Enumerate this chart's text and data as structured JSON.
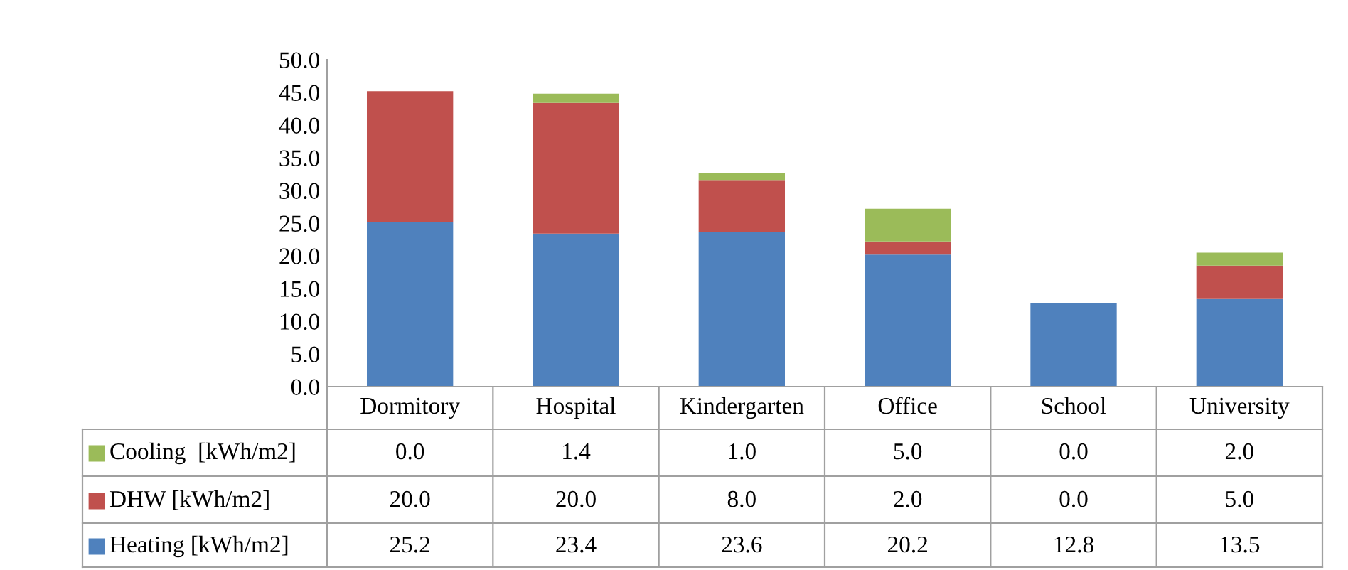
{
  "chart_data": {
    "type": "bar",
    "stacked": true,
    "categories": [
      "Dormitory",
      "Hospital",
      "Kindergarten",
      "Office",
      "School",
      "University"
    ],
    "series": [
      {
        "name": "Heating [kWh/m2]",
        "color": "#4f81bd",
        "values": [
          25.2,
          23.4,
          23.6,
          20.2,
          12.8,
          13.5
        ],
        "value_labels": [
          "25.2",
          "23.4",
          "23.6",
          "20.2",
          "12.8",
          "13.5"
        ]
      },
      {
        "name": "DHW [kWh/m2]",
        "color": "#c0504d",
        "values": [
          20.0,
          20.0,
          8.0,
          2.0,
          0.0,
          5.0
        ],
        "value_labels": [
          "20.0",
          "20.0",
          "8.0",
          "2.0",
          "0.0",
          "5.0"
        ]
      },
      {
        "name": "Cooling  [kWh/m2]",
        "color": "#9bbb59",
        "values": [
          0.0,
          1.4,
          1.0,
          5.0,
          0.0,
          2.0
        ],
        "value_labels": [
          "0.0",
          "1.4",
          "1.0",
          "5.0",
          "0.0",
          "2.0"
        ]
      }
    ],
    "ylim": [
      0,
      50
    ],
    "yticks": [
      {
        "value": 0,
        "label": "0.0"
      },
      {
        "value": 5,
        "label": "5.0"
      },
      {
        "value": 10,
        "label": "10.0"
      },
      {
        "value": 15,
        "label": "15.0"
      },
      {
        "value": 20,
        "label": "20.0"
      },
      {
        "value": 25,
        "label": "25.0"
      },
      {
        "value": 30,
        "label": "30.0"
      },
      {
        "value": 35,
        "label": "35.0"
      },
      {
        "value": 40,
        "label": "40.0"
      },
      {
        "value": 45,
        "label": "45.0"
      },
      {
        "value": 50,
        "label": "50.0"
      }
    ],
    "grid": false,
    "legend": "bottom left"
  }
}
